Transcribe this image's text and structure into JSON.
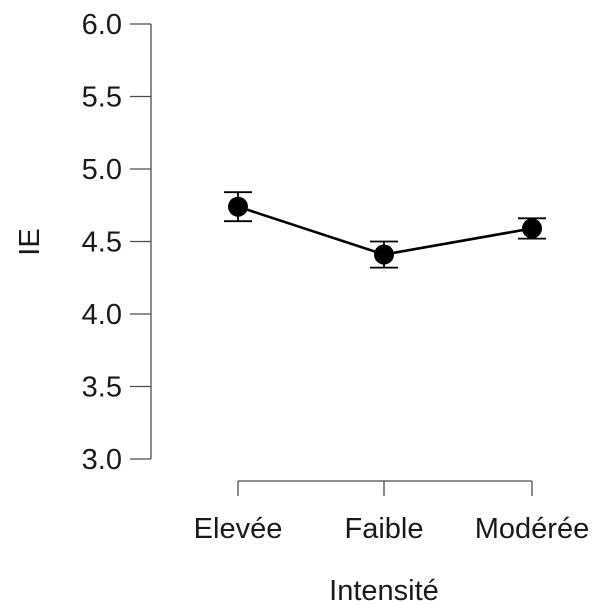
{
  "chart_data": {
    "type": "line",
    "categories": [
      "Elevée",
      "Faible",
      "Modérée"
    ],
    "values": [
      4.74,
      4.41,
      4.59
    ],
    "error_low": [
      4.64,
      4.32,
      4.52
    ],
    "error_high": [
      4.84,
      4.5,
      4.66
    ],
    "xlabel": "Intensité",
    "ylabel": "IE",
    "ylim": [
      3.0,
      6.0
    ],
    "yticks": [
      "3.0",
      "3.5",
      "4.0",
      "4.5",
      "5.0",
      "5.5",
      "6.0"
    ],
    "grid": false,
    "colors": {
      "line": "#000000",
      "marker": "#000000",
      "axis": "#4d4d4d",
      "text": "#1a1a1a"
    }
  }
}
